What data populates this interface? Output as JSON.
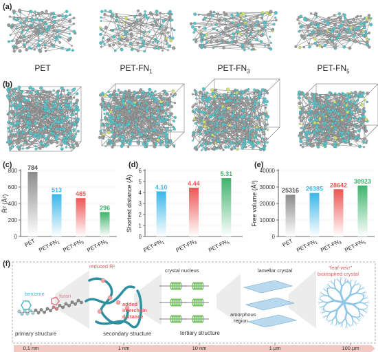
{
  "panels": {
    "a": "(a)",
    "b": "(b)",
    "c": "(c)",
    "d": "(d)",
    "e": "(e)",
    "f": "(f)"
  },
  "molecules": [
    "PET",
    "PET-FN1",
    "PET-FN3",
    "PET-FN5"
  ],
  "colors": {
    "gray": "#8c8c8c",
    "blue": "#3ab6e8",
    "red": "#ee5555",
    "green": "#3fb36b",
    "atom_cyan": "#56c3c9",
    "atom_gray": "#9a9a9a",
    "atom_yellow": "#cfe06a",
    "strand": "#2d8fa0",
    "crystal_blue": "#b9d9ee",
    "leaf": "#8ec6e6",
    "scale_bar": "#f3c9c4"
  },
  "chart_data": [
    {
      "type": "bar",
      "panel": "c",
      "ylabel": "R̄² (Å²)",
      "categories": [
        "PET",
        "PET-FN1",
        "PET-FN3",
        "PET-FN5"
      ],
      "values": [
        784,
        513,
        465,
        296
      ],
      "value_labels": [
        "784",
        "513",
        "465",
        "296"
      ],
      "ylim": [
        0,
        800
      ],
      "yticks": [
        "0",
        "200",
        "400",
        "600",
        "800"
      ],
      "grid": true
    },
    {
      "type": "bar",
      "panel": "d",
      "ylabel": "Shortest distance (Å)",
      "categories": [
        "PET-FN1",
        "PET-FN3",
        "PET-FN5"
      ],
      "values": [
        4.1,
        4.44,
        5.31
      ],
      "value_labels": [
        "4.10",
        "4.44",
        "5.31"
      ],
      "ylim": [
        0,
        6
      ],
      "yticks": [
        "0",
        "1",
        "2",
        "3",
        "4",
        "5",
        "6"
      ],
      "grid": true
    },
    {
      "type": "bar",
      "panel": "e",
      "ylabel": "Free volume (Å³)",
      "categories": [
        "PET",
        "PET-FN1",
        "PET-FN3",
        "PET-FN5"
      ],
      "values": [
        25316,
        26385,
        28642,
        30923
      ],
      "value_labels": [
        "25316",
        "26385",
        "28642",
        "30923"
      ],
      "ylim": [
        0,
        40000
      ],
      "yticks": [
        "0",
        "10000",
        "20000",
        "30000",
        "40000"
      ],
      "grid": true
    }
  ],
  "schematic": {
    "benzene": "benzene",
    "furan": "furan",
    "reduced": "reduced R̄²",
    "added_distance_1": "added",
    "added_distance_2": "interchain",
    "added_distance_3": "distance",
    "crystal_nucleus": "crystal nucleus",
    "lamellar_crystal": "lamellar crystal",
    "amorphous_1": "amorphous",
    "amorphous_2": "region",
    "leaf_vein_1": "\"leaf-vein\"",
    "leaf_vein_2": "bioinspired crystal",
    "primary": "primary structure",
    "secondary": "secondary structure",
    "tertiary": "tertiary structure",
    "scale": [
      "0.1 nm",
      "1 nm",
      "10 nm",
      "1 μm",
      "100 μm"
    ]
  }
}
